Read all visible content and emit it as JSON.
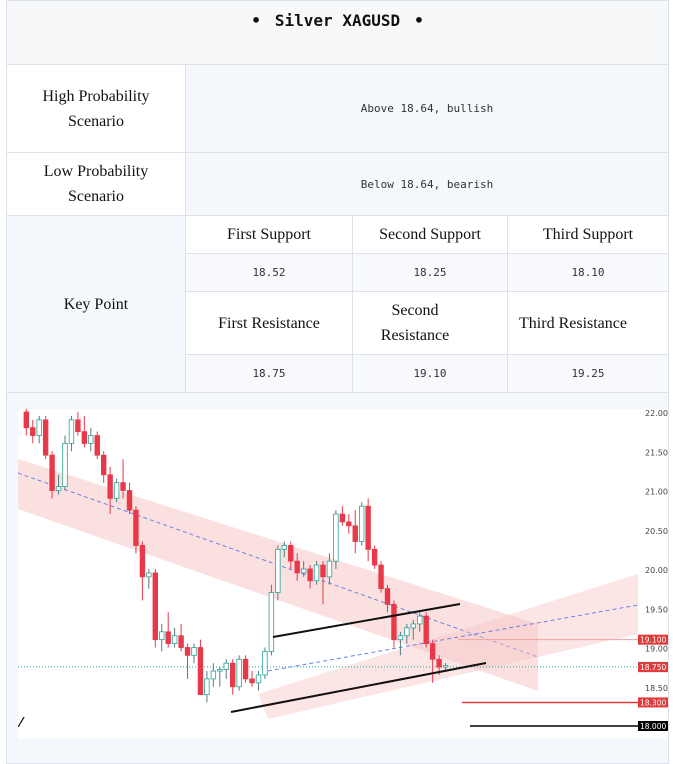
{
  "title": "Silver XAGUSD",
  "bullet": "•",
  "rows": {
    "high": {
      "label": "High Probability Scenario",
      "value": "Above 18.64, bullish"
    },
    "low": {
      "label": "Low Probability Scenario",
      "value": "Below 18.64, bearish"
    }
  },
  "key_point": {
    "label": "Key Point",
    "support_headers": [
      "First Support",
      "Second Support",
      "Third Support"
    ],
    "support_values": [
      "18.52",
      "18.25",
      "18.10"
    ],
    "resistance_headers": [
      "First Resistance",
      "Second Resistance",
      "Third Resistance"
    ],
    "resistance_values": [
      "18.75",
      "19.10",
      "19.25"
    ]
  },
  "chart_data": {
    "type": "candlestick",
    "y_ticks": [
      "22.000",
      "21.500",
      "21.000",
      "20.500",
      "20.000",
      "19.500",
      "19.000",
      "18.500",
      "18.000"
    ],
    "price_tags": [
      {
        "label": "19.100",
        "value": 19.1,
        "color": "#e03a3a"
      },
      {
        "label": "18.753",
        "value": 18.753,
        "color": "#26a69a"
      },
      {
        "label": "18.750",
        "value": 18.75,
        "color": "#e03a3a"
      },
      {
        "label": "18.300",
        "value": 18.3,
        "color": "#e03a3a"
      },
      {
        "label": "18.000",
        "value": 18.0,
        "color": "#000000"
      }
    ],
    "candles": [
      [
        22.0,
        22.1,
        21.7,
        21.8
      ],
      [
        21.8,
        21.9,
        21.6,
        21.7
      ],
      [
        21.7,
        21.95,
        21.6,
        21.9
      ],
      [
        21.9,
        21.95,
        21.4,
        21.45
      ],
      [
        21.45,
        21.5,
        20.9,
        21.0
      ],
      [
        21.0,
        21.2,
        20.95,
        21.05
      ],
      [
        21.05,
        21.7,
        21.0,
        21.6
      ],
      [
        21.6,
        21.95,
        21.5,
        21.9
      ],
      [
        21.9,
        22.0,
        21.7,
        21.75
      ],
      [
        21.75,
        21.95,
        21.55,
        21.6
      ],
      [
        21.6,
        21.8,
        21.5,
        21.7
      ],
      [
        21.7,
        21.75,
        21.4,
        21.45
      ],
      [
        21.45,
        21.5,
        21.1,
        21.2
      ],
      [
        21.2,
        21.3,
        20.7,
        20.9
      ],
      [
        20.9,
        21.15,
        20.85,
        21.1
      ],
      [
        21.1,
        21.4,
        20.9,
        21.0
      ],
      [
        21.0,
        21.1,
        20.7,
        20.75
      ],
      [
        20.75,
        20.8,
        20.2,
        20.3
      ],
      [
        20.3,
        20.35,
        19.6,
        19.9
      ],
      [
        19.9,
        20.0,
        19.75,
        19.95
      ],
      [
        19.95,
        20.0,
        19.0,
        19.1
      ],
      [
        19.1,
        19.3,
        18.95,
        19.2
      ],
      [
        19.2,
        19.45,
        19.0,
        19.05
      ],
      [
        19.05,
        19.25,
        19.0,
        19.15
      ],
      [
        19.15,
        19.3,
        18.95,
        19.0
      ],
      [
        19.0,
        19.05,
        18.6,
        18.9
      ],
      [
        18.9,
        19.05,
        18.8,
        19.0
      ],
      [
        19.0,
        19.1,
        18.4,
        18.4
      ],
      [
        18.4,
        18.7,
        18.3,
        18.6
      ],
      [
        18.6,
        18.8,
        18.5,
        18.7
      ],
      [
        18.7,
        18.75,
        18.5,
        18.72
      ],
      [
        18.72,
        18.85,
        18.6,
        18.8
      ],
      [
        18.8,
        18.85,
        18.4,
        18.5
      ],
      [
        18.5,
        18.9,
        18.45,
        18.85
      ],
      [
        18.85,
        18.9,
        18.55,
        18.6
      ],
      [
        18.6,
        18.7,
        18.5,
        18.55
      ],
      [
        18.55,
        18.7,
        18.45,
        18.65
      ],
      [
        18.65,
        19.0,
        18.6,
        18.95
      ],
      [
        18.95,
        19.8,
        18.9,
        19.7
      ],
      [
        19.7,
        20.3,
        19.6,
        20.25
      ],
      [
        20.25,
        20.35,
        20.15,
        20.3
      ],
      [
        20.3,
        20.35,
        20.0,
        20.1
      ],
      [
        20.1,
        20.2,
        19.85,
        19.95
      ],
      [
        19.95,
        20.1,
        19.9,
        20.0
      ],
      [
        20.0,
        20.05,
        19.75,
        19.85
      ],
      [
        19.85,
        20.1,
        19.8,
        20.05
      ],
      [
        20.05,
        20.1,
        19.55,
        19.9
      ],
      [
        19.9,
        20.2,
        19.8,
        20.1
      ],
      [
        20.1,
        20.75,
        20.0,
        20.7
      ],
      [
        20.7,
        20.8,
        20.55,
        20.6
      ],
      [
        20.6,
        20.7,
        20.45,
        20.55
      ],
      [
        20.55,
        20.75,
        20.2,
        20.35
      ],
      [
        20.35,
        20.85,
        20.3,
        20.8
      ],
      [
        20.8,
        20.9,
        20.1,
        20.25
      ],
      [
        20.25,
        20.3,
        20.0,
        20.05
      ],
      [
        20.05,
        20.1,
        19.7,
        19.75
      ],
      [
        19.75,
        19.8,
        19.45,
        19.55
      ],
      [
        19.55,
        19.6,
        19.0,
        19.1
      ],
      [
        19.1,
        19.2,
        18.9,
        19.15
      ],
      [
        19.15,
        19.3,
        19.05,
        19.25
      ],
      [
        19.25,
        19.35,
        19.1,
        19.3
      ],
      [
        19.3,
        19.45,
        19.2,
        19.4
      ],
      [
        19.4,
        19.45,
        19.0,
        19.05
      ],
      [
        19.05,
        19.1,
        18.55,
        18.85
      ],
      [
        18.85,
        18.9,
        18.65,
        18.75
      ],
      [
        18.75,
        18.8,
        18.7,
        18.77
      ]
    ]
  }
}
